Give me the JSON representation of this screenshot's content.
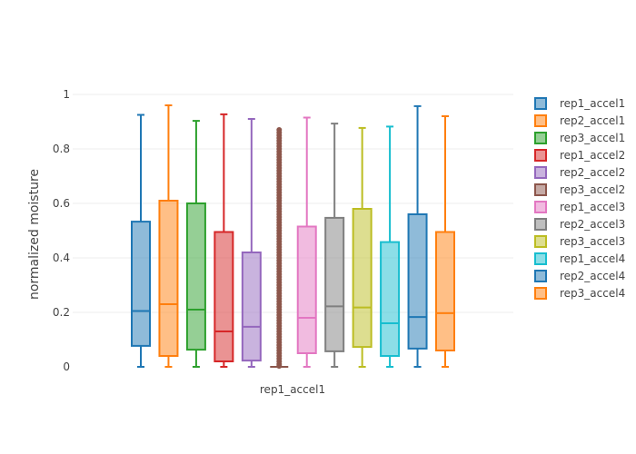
{
  "chart_data": {
    "type": "box",
    "xlabel": "rep1_accel1",
    "ylabel": "normalized moisture",
    "ylim": [
      0,
      1
    ],
    "yticks": [
      "0",
      "0.2",
      "0.4",
      "0.6",
      "0.8",
      "1"
    ],
    "grid": true,
    "legend_position": "right",
    "series": [
      {
        "name": "rep1_accel1",
        "color": "#1f77b4",
        "min": 0,
        "q1": 0.077,
        "median": 0.205,
        "q3": 0.533,
        "max": 0.925
      },
      {
        "name": "rep2_accel1",
        "color": "#ff7f0e",
        "min": 0,
        "q1": 0.04,
        "median": 0.23,
        "q3": 0.61,
        "max": 0.96
      },
      {
        "name": "rep3_accel1",
        "color": "#2ca02c",
        "min": 0,
        "q1": 0.063,
        "median": 0.21,
        "q3": 0.6,
        "max": 0.903
      },
      {
        "name": "rep1_accel2",
        "color": "#d62728",
        "min": 0,
        "q1": 0.02,
        "median": 0.13,
        "q3": 0.495,
        "max": 0.927
      },
      {
        "name": "rep2_accel2",
        "color": "#9467bd",
        "min": 0,
        "q1": 0.023,
        "median": 0.147,
        "q3": 0.42,
        "max": 0.91
      },
      {
        "name": "rep3_accel2",
        "color": "#8c564b",
        "min": 0,
        "q1": 0,
        "median": 0,
        "q3": 0,
        "max": 0,
        "outliers": [
          0.003,
          0.01,
          0.02,
          0.03,
          0.04,
          0.05,
          0.06,
          0.07,
          0.08,
          0.09,
          0.1,
          0.11,
          0.12,
          0.13,
          0.14,
          0.15,
          0.16,
          0.17,
          0.18,
          0.19,
          0.2,
          0.21,
          0.22,
          0.23,
          0.24,
          0.25,
          0.26,
          0.27,
          0.28,
          0.29,
          0.3,
          0.31,
          0.32,
          0.33,
          0.34,
          0.35,
          0.36,
          0.37,
          0.38,
          0.39,
          0.4,
          0.41,
          0.42,
          0.43,
          0.44,
          0.45,
          0.46,
          0.47,
          0.48,
          0.49,
          0.5,
          0.51,
          0.52,
          0.53,
          0.54,
          0.55,
          0.56,
          0.57,
          0.58,
          0.59,
          0.6,
          0.61,
          0.62,
          0.63,
          0.64,
          0.65,
          0.66,
          0.67,
          0.68,
          0.69,
          0.7,
          0.71,
          0.72,
          0.73,
          0.74,
          0.75,
          0.76,
          0.77,
          0.78,
          0.79,
          0.8,
          0.81,
          0.82,
          0.83,
          0.84,
          0.85,
          0.86,
          0.87
        ]
      },
      {
        "name": "rep1_accel3",
        "color": "#e377c2",
        "min": 0,
        "q1": 0.05,
        "median": 0.18,
        "q3": 0.515,
        "max": 0.915
      },
      {
        "name": "rep2_accel3",
        "color": "#7f7f7f",
        "min": 0,
        "q1": 0.057,
        "median": 0.222,
        "q3": 0.547,
        "max": 0.893
      },
      {
        "name": "rep3_accel3",
        "color": "#bcbd22",
        "min": 0,
        "q1": 0.073,
        "median": 0.218,
        "q3": 0.58,
        "max": 0.877
      },
      {
        "name": "rep1_accel4",
        "color": "#17becf",
        "min": 0,
        "q1": 0.04,
        "median": 0.16,
        "q3": 0.458,
        "max": 0.882
      },
      {
        "name": "rep2_accel4",
        "color": "#1f77b4",
        "min": 0,
        "q1": 0.067,
        "median": 0.183,
        "q3": 0.56,
        "max": 0.957
      },
      {
        "name": "rep3_accel4",
        "color": "#ff7f0e",
        "min": 0,
        "q1": 0.06,
        "median": 0.197,
        "q3": 0.495,
        "max": 0.92
      }
    ]
  }
}
